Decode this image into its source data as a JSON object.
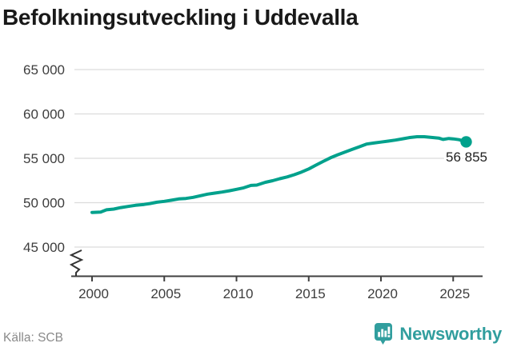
{
  "header": {
    "title": "Befolkningsutveckling i Uddevalla"
  },
  "footer": {
    "source": "Källa: SCB",
    "brand": "Newsworthy"
  },
  "colors": {
    "line": "#00a18c",
    "brand": "#319e9e",
    "grid": "#dcdcdc",
    "axis": "#404040",
    "tick_label": "#3d3d3d",
    "title": "#191919",
    "source": "#8a8a8a",
    "end_label": "#1f1f1f"
  },
  "chart_data": {
    "type": "line",
    "title": "Befolkningsutveckling i Uddevalla",
    "xlabel": "",
    "ylabel": "",
    "grid": "horizontal",
    "legend": "none",
    "axis_break_y": true,
    "xlim": [
      1998.9,
      2027.0
    ],
    "ylim": [
      44000,
      66500
    ],
    "x_ticks": {
      "values": [
        2000,
        2005,
        2010,
        2015,
        2020,
        2025
      ],
      "labels": [
        "2000",
        "2005",
        "2010",
        "2015",
        "2020",
        "2025"
      ]
    },
    "y_ticks": {
      "values": [
        45000,
        50000,
        55000,
        60000,
        65000
      ],
      "labels": [
        "45 000",
        "50 000",
        "55 000",
        "60 000",
        "65 000"
      ]
    },
    "series": [
      {
        "name": "Befolkning i Uddevalla",
        "color": "#00a18c",
        "points": [
          [
            2000,
            48900
          ],
          [
            2000.6,
            48950
          ],
          [
            2001,
            49200
          ],
          [
            2001.5,
            49280
          ],
          [
            2002,
            49450
          ],
          [
            2002.5,
            49580
          ],
          [
            2003,
            49700
          ],
          [
            2003.6,
            49800
          ],
          [
            2004,
            49900
          ],
          [
            2004.5,
            50050
          ],
          [
            2005,
            50150
          ],
          [
            2005.5,
            50280
          ],
          [
            2006,
            50420
          ],
          [
            2006.5,
            50480
          ],
          [
            2007,
            50600
          ],
          [
            2007.5,
            50780
          ],
          [
            2008,
            50960
          ],
          [
            2008.5,
            51080
          ],
          [
            2009,
            51200
          ],
          [
            2009.5,
            51340
          ],
          [
            2010,
            51500
          ],
          [
            2010.5,
            51680
          ],
          [
            2011,
            51950
          ],
          [
            2011.4,
            51980
          ],
          [
            2012,
            52300
          ],
          [
            2012.5,
            52480
          ],
          [
            2013,
            52700
          ],
          [
            2013.5,
            52900
          ],
          [
            2014,
            53150
          ],
          [
            2014.5,
            53450
          ],
          [
            2015,
            53800
          ],
          [
            2015.5,
            54230
          ],
          [
            2016,
            54650
          ],
          [
            2016.5,
            55050
          ],
          [
            2017,
            55400
          ],
          [
            2017.5,
            55700
          ],
          [
            2018,
            56000
          ],
          [
            2018.5,
            56300
          ],
          [
            2019,
            56600
          ],
          [
            2019.5,
            56720
          ],
          [
            2020,
            56830
          ],
          [
            2020.5,
            56940
          ],
          [
            2021,
            57050
          ],
          [
            2021.5,
            57200
          ],
          [
            2022,
            57340
          ],
          [
            2022.5,
            57430
          ],
          [
            2023,
            57430
          ],
          [
            2023.5,
            57350
          ],
          [
            2024,
            57280
          ],
          [
            2024.3,
            57130
          ],
          [
            2024.7,
            57230
          ],
          [
            2025,
            57190
          ],
          [
            2025.4,
            57100
          ],
          [
            2025.9,
            56855
          ]
        ]
      }
    ],
    "end_annotation": {
      "label": "56 855",
      "x": 2025.9,
      "y": 56855
    }
  }
}
